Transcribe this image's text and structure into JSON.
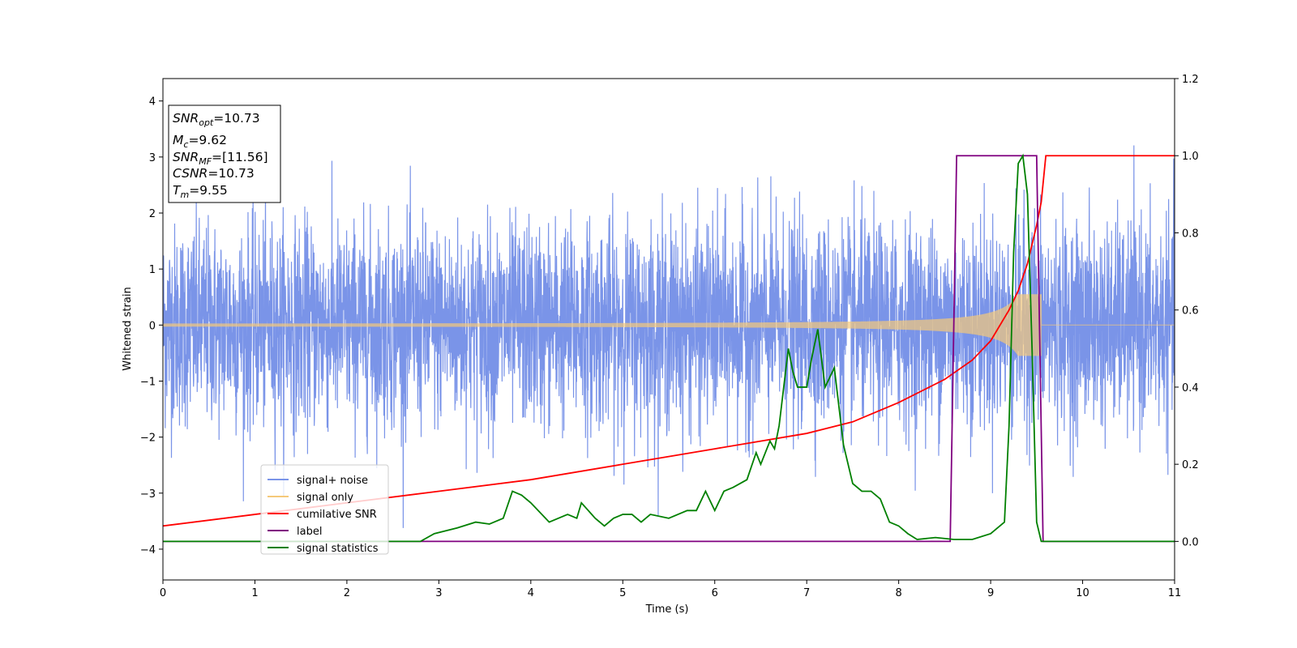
{
  "chart_data": {
    "type": "line",
    "xlabel": "Time (s)",
    "ylabel": "Whitened strain",
    "xlim": [
      0,
      11
    ],
    "ylim": [
      -4.55,
      4.4
    ],
    "y2lim": [
      -0.1,
      1.2
    ],
    "xticks": [
      "0",
      "1",
      "2",
      "3",
      "4",
      "5",
      "6",
      "7",
      "8",
      "9",
      "10",
      "11"
    ],
    "yticks": [
      "−4",
      "−3",
      "−2",
      "−1",
      "0",
      "1",
      "2",
      "3",
      "4"
    ],
    "y2ticks": [
      "0.0",
      "0.2",
      "0.4",
      "0.6",
      "0.8",
      "1.0",
      "1.2"
    ],
    "legend_placement": "lower-left",
    "info_box": {
      "snr_opt": {
        "symbol": "SNR",
        "sub": "opt",
        "value": "=10.73"
      },
      "mc": {
        "symbol": "M",
        "sub": "c",
        "value": "=9.62"
      },
      "snr_mf": {
        "symbol": "SNR",
        "sub": "MF",
        "value": "=[11.56]"
      },
      "csnr": {
        "symbol": "CSNR",
        "sub": "",
        "value": "=10.73"
      },
      "tm": {
        "symbol": "T",
        "sub": "m",
        "value": "=9.55"
      }
    },
    "series": [
      {
        "name": "signal+ noise",
        "axis": "left",
        "color": "#7a94e8",
        "noise_std": 0.9,
        "merger_time": 9.55
      },
      {
        "name": "signal only",
        "axis": "left",
        "color": "#f5c97a",
        "merger_time": 9.55,
        "peak_amplitude": 0.55
      },
      {
        "name": "cumilative SNR",
        "axis": "right",
        "color": "#ff0000",
        "x": [
          0,
          1,
          2,
          3,
          4,
          5,
          6,
          7,
          7.5,
          8,
          8.5,
          8.8,
          9.0,
          9.2,
          9.3,
          9.4,
          9.5,
          9.55,
          9.6,
          11
        ],
        "values": [
          0.04,
          0.07,
          0.1,
          0.13,
          0.16,
          0.2,
          0.24,
          0.28,
          0.31,
          0.36,
          0.42,
          0.47,
          0.52,
          0.6,
          0.65,
          0.72,
          0.82,
          0.88,
          1.0,
          1.0
        ]
      },
      {
        "name": "label",
        "axis": "right",
        "color": "#800080",
        "x": [
          0,
          8.56,
          8.63,
          9.5,
          9.57,
          11
        ],
        "values": [
          0,
          0,
          1,
          1,
          0,
          0
        ]
      },
      {
        "name": "signal statistics",
        "axis": "right",
        "color": "#008000",
        "x": [
          0,
          2.8,
          2.95,
          3.2,
          3.4,
          3.55,
          3.7,
          3.8,
          3.9,
          4.0,
          4.2,
          4.4,
          4.5,
          4.55,
          4.7,
          4.8,
          4.9,
          5.0,
          5.1,
          5.2,
          5.3,
          5.5,
          5.7,
          5.8,
          5.9,
          6.0,
          6.1,
          6.2,
          6.35,
          6.45,
          6.5,
          6.6,
          6.65,
          6.7,
          6.8,
          6.85,
          6.9,
          7.0,
          7.05,
          7.12,
          7.2,
          7.3,
          7.4,
          7.5,
          7.6,
          7.7,
          7.8,
          7.9,
          8.0,
          8.1,
          8.2,
          8.4,
          8.6,
          8.8,
          9.0,
          9.1,
          9.15,
          9.2,
          9.25,
          9.3,
          9.35,
          9.4,
          9.45,
          9.5,
          9.55,
          11
        ],
        "values": [
          0,
          0.0,
          0.02,
          0.035,
          0.05,
          0.045,
          0.06,
          0.13,
          0.12,
          0.1,
          0.05,
          0.07,
          0.06,
          0.1,
          0.06,
          0.04,
          0.06,
          0.07,
          0.07,
          0.05,
          0.07,
          0.06,
          0.08,
          0.08,
          0.13,
          0.08,
          0.13,
          0.14,
          0.16,
          0.23,
          0.2,
          0.26,
          0.24,
          0.3,
          0.5,
          0.44,
          0.4,
          0.4,
          0.47,
          0.55,
          0.4,
          0.45,
          0.25,
          0.15,
          0.13,
          0.13,
          0.11,
          0.05,
          0.04,
          0.02,
          0.005,
          0.01,
          0.005,
          0.005,
          0.02,
          0.04,
          0.05,
          0.3,
          0.75,
          0.98,
          1.0,
          0.9,
          0.5,
          0.05,
          0.0,
          0.0
        ]
      }
    ]
  }
}
